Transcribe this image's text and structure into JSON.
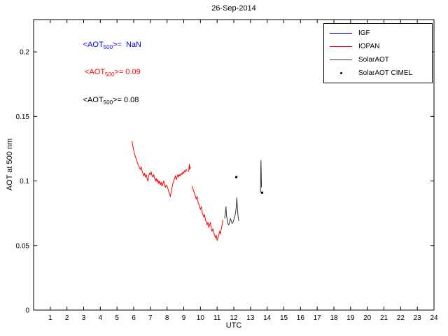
{
  "chart_data": {
    "type": "line",
    "title": "26-Sep-2014",
    "xlabel": "UTC",
    "ylabel": "AOT at 500 nm",
    "xlim": [
      0,
      24
    ],
    "ylim": [
      0,
      0.225
    ],
    "xticks": [
      1,
      2,
      3,
      4,
      5,
      6,
      7,
      8,
      9,
      10,
      11,
      12,
      13,
      14,
      15,
      16,
      17,
      18,
      19,
      20,
      21,
      22,
      23,
      24
    ],
    "yticks": [
      0,
      0.05,
      0.1,
      0.15,
      0.2
    ],
    "ytick_labels": [
      "0",
      "0.05",
      "0.1",
      "0.15",
      "0.2"
    ],
    "grid": false,
    "legend_position": "top-right",
    "legend": [
      {
        "label": "IGF",
        "color": "#0000ff",
        "type": "line"
      },
      {
        "label": "IOPAN",
        "color": "#ff0000",
        "type": "line"
      },
      {
        "label": "SolarAOT",
        "color": "#333333",
        "type": "line"
      },
      {
        "label": "SolarAOT CIMEL",
        "color": "#000000",
        "type": "marker"
      }
    ],
    "annotations": [
      {
        "prefix": "<AOT",
        "sub": "500",
        "suffix": ">=  NaN",
        "color": "#0000ff",
        "x": 2.45,
        "y": 0.205
      },
      {
        "prefix": "<AOT",
        "sub": "500",
        "suffix": ">= 0.09",
        "color": "#ff0000",
        "x": 2.55,
        "y": 0.184
      },
      {
        "prefix": "<AOT",
        "sub": "500",
        "suffix": ">= 0.08",
        "color": "#000000",
        "x": 2.45,
        "y": 0.162
      }
    ],
    "series": [
      {
        "name": "IGF",
        "color": "#0000ff",
        "style": "line",
        "segments": []
      },
      {
        "name": "IOPAN",
        "color": "#ff0000",
        "style": "line",
        "segments": [
          [
            [
              5.9,
              0.131
            ],
            [
              5.95,
              0.127
            ],
            [
              6.0,
              0.124
            ],
            [
              6.05,
              0.121
            ],
            [
              6.1,
              0.119
            ],
            [
              6.15,
              0.117
            ],
            [
              6.2,
              0.115
            ],
            [
              6.25,
              0.113
            ],
            [
              6.3,
              0.112
            ],
            [
              6.35,
              0.11
            ],
            [
              6.4,
              0.109
            ],
            [
              6.45,
              0.111
            ],
            [
              6.5,
              0.108
            ],
            [
              6.55,
              0.106
            ],
            [
              6.6,
              0.104
            ],
            [
              6.65,
              0.106
            ],
            [
              6.7,
              0.103
            ],
            [
              6.75,
              0.105
            ],
            [
              6.8,
              0.102
            ],
            [
              6.85,
              0.1
            ],
            [
              6.9,
              0.104
            ],
            [
              6.95,
              0.106
            ],
            [
              7.0,
              0.105
            ],
            [
              7.05,
              0.107
            ],
            [
              7.1,
              0.104
            ],
            [
              7.15,
              0.103
            ],
            [
              7.2,
              0.105
            ],
            [
              7.25,
              0.102
            ],
            [
              7.3,
              0.1
            ],
            [
              7.35,
              0.102
            ],
            [
              7.4,
              0.099
            ],
            [
              7.45,
              0.101
            ],
            [
              7.5,
              0.098
            ],
            [
              7.55,
              0.1
            ],
            [
              7.6,
              0.097
            ],
            [
              7.65,
              0.099
            ],
            [
              7.7,
              0.096
            ],
            [
              7.75,
              0.098
            ],
            [
              7.8,
              0.1
            ],
            [
              7.85,
              0.097
            ],
            [
              7.9,
              0.095
            ],
            [
              7.95,
              0.097
            ],
            [
              8.0,
              0.096
            ],
            [
              8.05,
              0.094
            ],
            [
              8.1,
              0.092
            ],
            [
              8.15,
              0.09
            ],
            [
              8.2,
              0.088
            ],
            [
              8.25,
              0.092
            ],
            [
              8.3,
              0.095
            ],
            [
              8.35,
              0.098
            ],
            [
              8.4,
              0.1
            ],
            [
              8.45,
              0.102
            ],
            [
              8.5,
              0.104
            ],
            [
              8.55,
              0.101
            ],
            [
              8.6,
              0.103
            ],
            [
              8.65,
              0.105
            ],
            [
              8.7,
              0.103
            ],
            [
              8.75,
              0.105
            ],
            [
              8.8,
              0.104
            ],
            [
              8.85,
              0.106
            ],
            [
              8.9,
              0.105
            ],
            [
              8.95,
              0.107
            ],
            [
              9.0,
              0.106
            ],
            [
              9.05,
              0.108
            ],
            [
              9.1,
              0.107
            ],
            [
              9.15,
              0.109
            ],
            [
              9.2,
              0.108
            ]
          ],
          [
            [
              9.3,
              0.107
            ],
            [
              9.33,
              0.113
            ],
            [
              9.36,
              0.109
            ],
            [
              9.4,
              0.111
            ]
          ],
          [
            [
              9.5,
              0.096
            ],
            [
              9.55,
              0.094
            ],
            [
              9.6,
              0.092
            ],
            [
              9.65,
              0.09
            ],
            [
              9.7,
              0.088
            ],
            [
              9.75,
              0.086
            ],
            [
              9.8,
              0.088
            ],
            [
              9.85,
              0.084
            ],
            [
              9.9,
              0.082
            ],
            [
              9.95,
              0.08
            ],
            [
              10.0,
              0.078
            ],
            [
              10.05,
              0.08
            ],
            [
              10.1,
              0.076
            ],
            [
              10.15,
              0.074
            ],
            [
              10.2,
              0.072
            ],
            [
              10.25,
              0.074
            ],
            [
              10.3,
              0.07
            ],
            [
              10.35,
              0.068
            ],
            [
              10.4,
              0.066
            ],
            [
              10.45,
              0.068
            ],
            [
              10.5,
              0.064
            ],
            [
              10.55,
              0.066
            ],
            [
              10.6,
              0.068
            ],
            [
              10.65,
              0.063
            ],
            [
              10.7,
              0.061
            ],
            [
              10.75,
              0.063
            ],
            [
              10.8,
              0.06
            ],
            [
              10.85,
              0.058
            ],
            [
              10.9,
              0.056
            ],
            [
              10.95,
              0.058
            ],
            [
              11.0,
              0.054
            ],
            [
              11.05,
              0.056
            ],
            [
              11.1,
              0.058
            ],
            [
              11.15,
              0.061
            ],
            [
              11.2,
              0.059
            ],
            [
              11.25,
              0.063
            ],
            [
              11.3,
              0.066
            ],
            [
              11.35,
              0.07
            ]
          ]
        ]
      },
      {
        "name": "SolarAOT",
        "color": "#333333",
        "style": "line",
        "segments": [
          [
            [
              11.45,
              0.071
            ],
            [
              11.5,
              0.076
            ],
            [
              11.53,
              0.08
            ],
            [
              11.56,
              0.074
            ],
            [
              11.6,
              0.07
            ],
            [
              11.65,
              0.067
            ],
            [
              11.7,
              0.066
            ],
            [
              11.75,
              0.068
            ],
            [
              11.8,
              0.071
            ],
            [
              11.85,
              0.069
            ],
            [
              11.9,
              0.067
            ],
            [
              11.95,
              0.068
            ],
            [
              12.0,
              0.07
            ],
            [
              12.05,
              0.072
            ],
            [
              12.1,
              0.075
            ],
            [
              12.15,
              0.08
            ],
            [
              12.18,
              0.087
            ],
            [
              12.22,
              0.079
            ],
            [
              12.26,
              0.072
            ],
            [
              12.3,
              0.069
            ]
          ],
          [
            [
              13.6,
              0.091
            ],
            [
              13.62,
              0.11
            ],
            [
              13.63,
              0.116
            ],
            [
              13.66,
              0.095
            ]
          ]
        ]
      },
      {
        "name": "SolarAOT CIMEL",
        "color": "#000000",
        "style": "marker",
        "points": [
          [
            12.15,
            0.103
          ],
          [
            13.7,
            0.091
          ]
        ]
      }
    ]
  }
}
